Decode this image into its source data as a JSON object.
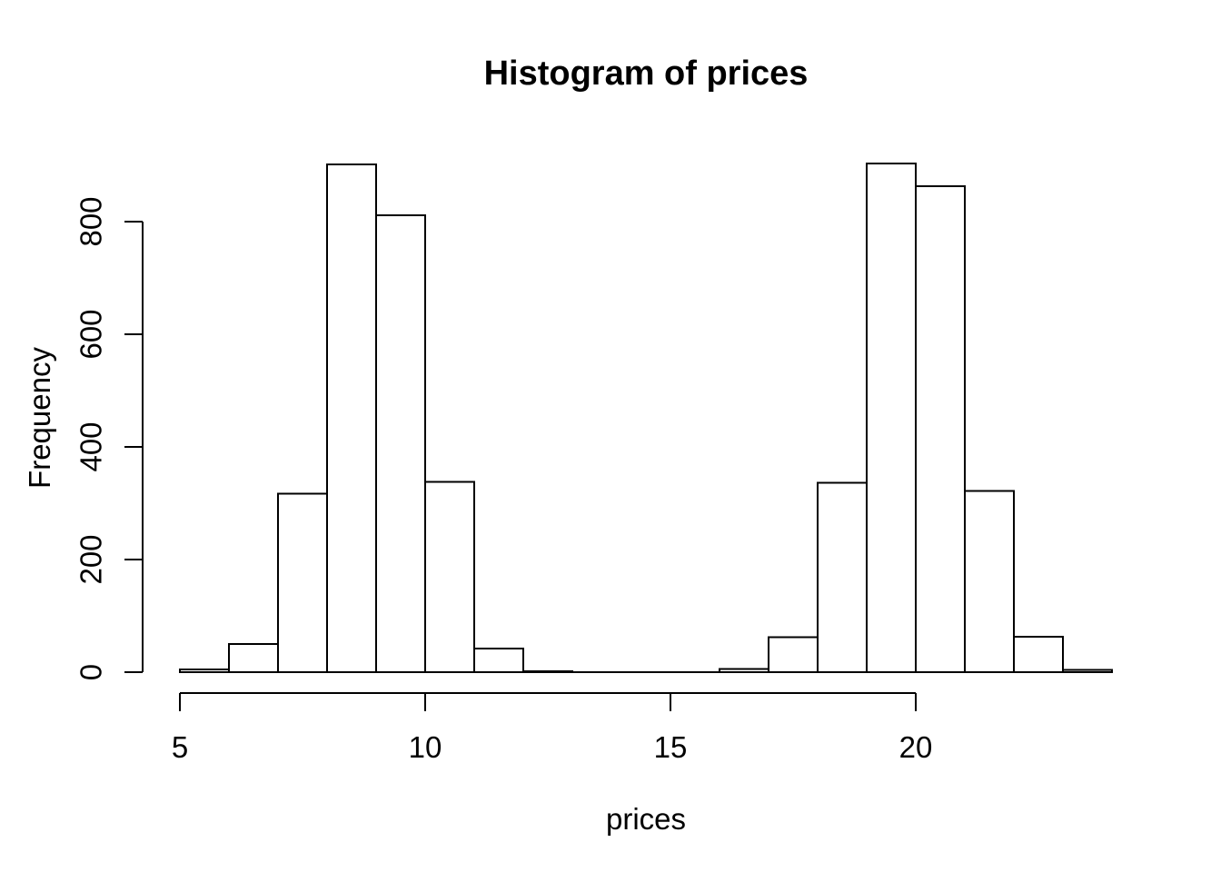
{
  "chart_data": {
    "type": "bar",
    "subtype": "histogram",
    "title": "Histogram of prices",
    "xlabel": "prices",
    "ylabel": "Frequency",
    "bin_edges": [
      5,
      6,
      7,
      8,
      9,
      10,
      11,
      12,
      13,
      14,
      15,
      16,
      17,
      18,
      19,
      20,
      21,
      22,
      23,
      24
    ],
    "values": [
      5,
      50,
      317,
      902,
      811,
      338,
      42,
      2,
      0,
      0,
      0,
      6,
      62,
      336,
      903,
      863,
      322,
      63,
      4
    ],
    "x_ticks": [
      5,
      10,
      15,
      20
    ],
    "y_ticks": [
      0,
      200,
      400,
      600,
      800
    ],
    "xlim": [
      5,
      24
    ],
    "ylim": [
      0,
      900
    ],
    "grid": false,
    "legend_position": "none",
    "bar_fill": "#ffffff",
    "bar_stroke": "#000000",
    "axis_color": "#000000",
    "background": "#ffffff"
  }
}
